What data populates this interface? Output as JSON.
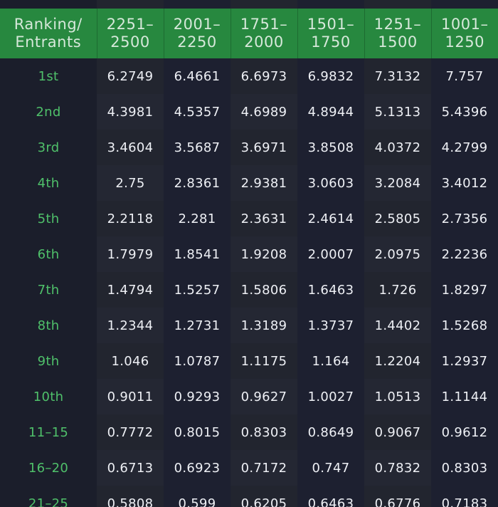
{
  "table": {
    "header": {
      "rank_label": [
        "Ranking/",
        "Entrants"
      ],
      "columns": [
        [
          "2251–",
          "2500"
        ],
        [
          "2001–",
          "2250"
        ],
        [
          "1751–",
          "2000"
        ],
        [
          "1501–",
          "1750"
        ],
        [
          "1251–",
          "1500"
        ],
        [
          "1001–",
          "1250"
        ]
      ]
    },
    "rows": [
      {
        "rank": "1st",
        "values": [
          "6.2749",
          "6.4661",
          "6.6973",
          "6.9832",
          "7.3132",
          "7.757"
        ]
      },
      {
        "rank": "2nd",
        "values": [
          "4.3981",
          "4.5357",
          "4.6989",
          "4.8944",
          "5.1313",
          "5.4396"
        ]
      },
      {
        "rank": "3rd",
        "values": [
          "3.4604",
          "3.5687",
          "3.6971",
          "3.8508",
          "4.0372",
          "4.2799"
        ]
      },
      {
        "rank": "4th",
        "values": [
          "2.75",
          "2.8361",
          "2.9381",
          "3.0603",
          "3.2084",
          "3.4012"
        ]
      },
      {
        "rank": "5th",
        "values": [
          "2.2118",
          "2.281",
          "2.3631",
          "2.4614",
          "2.5805",
          "2.7356"
        ]
      },
      {
        "rank": "6th",
        "values": [
          "1.7979",
          "1.8541",
          "1.9208",
          "2.0007",
          "2.0975",
          "2.2236"
        ]
      },
      {
        "rank": "7th",
        "values": [
          "1.4794",
          "1.5257",
          "1.5806",
          "1.6463",
          "1.726",
          "1.8297"
        ]
      },
      {
        "rank": "8th",
        "values": [
          "1.2344",
          "1.2731",
          "1.3189",
          "1.3737",
          "1.4402",
          "1.5268"
        ]
      },
      {
        "rank": "9th",
        "values": [
          "1.046",
          "1.0787",
          "1.1175",
          "1.164",
          "1.2204",
          "1.2937"
        ]
      },
      {
        "rank": "10th",
        "values": [
          "0.9011",
          "0.9293",
          "0.9627",
          "1.0027",
          "1.0513",
          "1.1144"
        ]
      },
      {
        "rank": "11–15",
        "values": [
          "0.7772",
          "0.8015",
          "0.8303",
          "0.8649",
          "0.9067",
          "0.9612"
        ]
      },
      {
        "rank": "16–20",
        "values": [
          "0.6713",
          "0.6923",
          "0.7172",
          "0.747",
          "0.7832",
          "0.8303"
        ]
      },
      {
        "rank": "21–25",
        "values": [
          "0.5808",
          "0.599",
          "0.6205",
          "0.6463",
          "0.6776",
          "0.7183"
        ]
      }
    ]
  },
  "colors": {
    "header_bg": "#27883f",
    "rank_text": "#4fc06a",
    "value_text": "#eef0f5",
    "page_bg": "#1a1d29"
  }
}
